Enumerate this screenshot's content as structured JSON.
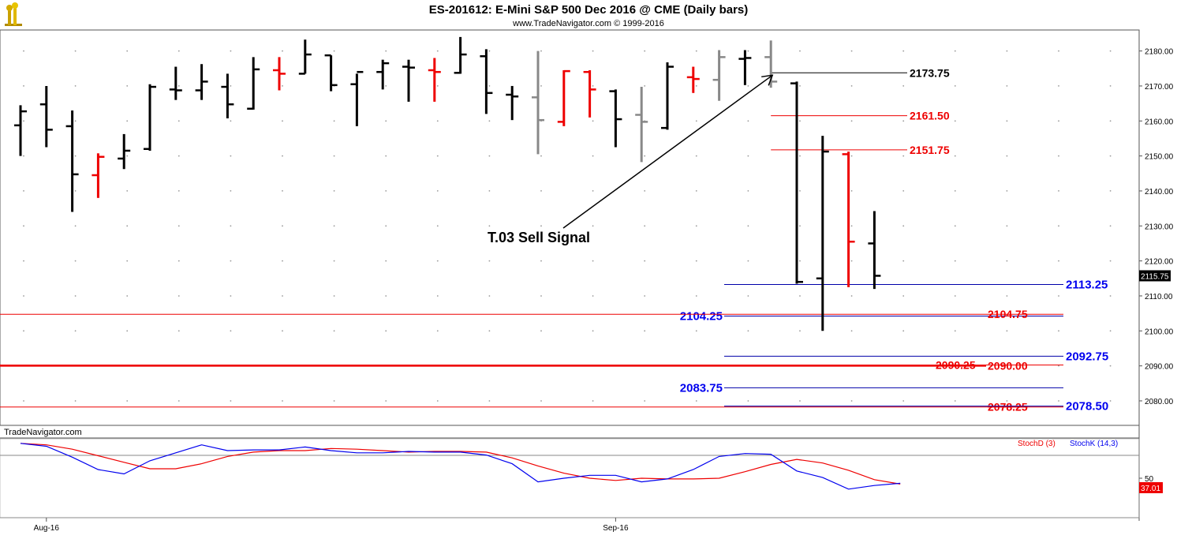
{
  "header": {
    "title": "ES-201612:  E-Mini S&P 500 Dec 2016 @ CME  (Daily bars)",
    "subtitle": "www.TradeNavigator.com © 1999-2016"
  },
  "colors": {
    "up_bar": "#000000",
    "down_bar": "#ee0000",
    "neutral_bar": "#888888",
    "red_line": "#ee0000",
    "blue_line": "#0000aa",
    "blue_text": "#0000ee",
    "red_text": "#ee0000",
    "stoch_d": "#ee0000",
    "stoch_k": "#0000ee",
    "dot": "#999999"
  },
  "chart_data": [
    {
      "type": "ohlc",
      "ylim": [
        2073,
        2186
      ],
      "y_ticks": [
        "2180.00",
        "2170.00",
        "2160.00",
        "2150.00",
        "2140.00",
        "2130.00",
        "2120.00",
        "2110.00",
        "2100.00",
        "2090.00",
        "2080.00"
      ],
      "y_tick_values": [
        2180,
        2170,
        2160,
        2150,
        2140,
        2130,
        2120,
        2110,
        2100,
        2090,
        2080
      ],
      "last_price": "2115.75",
      "x_labels": [
        "Aug-16",
        "Sep-16"
      ],
      "x_label_bars": [
        1,
        23
      ],
      "bars": [
        {
          "o": 2158.75,
          "h": 2164.5,
          "l": 2150.0,
          "c": 2162.75,
          "color": "up"
        },
        {
          "o": 2164.75,
          "h": 2170.0,
          "l": 2152.5,
          "c": 2157.5,
          "color": "up"
        },
        {
          "o": 2158.5,
          "h": 2163.0,
          "l": 2134.0,
          "c": 2144.75,
          "color": "up"
        },
        {
          "o": 2144.5,
          "h": 2150.75,
          "l": 2138.0,
          "c": 2149.75,
          "color": "down"
        },
        {
          "o": 2149.25,
          "h": 2156.25,
          "l": 2146.25,
          "c": 2151.5,
          "color": "up"
        },
        {
          "o": 2152.0,
          "h": 2170.5,
          "l": 2151.5,
          "c": 2169.75,
          "color": "up"
        },
        {
          "o": 2169.0,
          "h": 2175.5,
          "l": 2166.0,
          "c": 2168.75,
          "color": "up"
        },
        {
          "o": 2168.75,
          "h": 2176.25,
          "l": 2166.0,
          "c": 2171.25,
          "color": "up"
        },
        {
          "o": 2169.75,
          "h": 2173.5,
          "l": 2160.75,
          "c": 2164.75,
          "color": "up"
        },
        {
          "o": 2163.5,
          "h": 2178.25,
          "l": 2163.25,
          "c": 2174.75,
          "color": "up"
        },
        {
          "o": 2174.5,
          "h": 2178.25,
          "l": 2168.75,
          "c": 2173.5,
          "color": "down"
        },
        {
          "o": 2173.5,
          "h": 2183.25,
          "l": 2173.5,
          "c": 2179.0,
          "color": "up"
        },
        {
          "o": 2178.75,
          "h": 2178.75,
          "l": 2168.5,
          "c": 2170.25,
          "color": "up"
        },
        {
          "o": 2170.5,
          "h": 2173.5,
          "l": 2158.5,
          "c": 2174.0,
          "color": "up"
        },
        {
          "o": 2174.0,
          "h": 2177.5,
          "l": 2169.0,
          "c": 2176.5,
          "color": "up"
        },
        {
          "o": 2175.5,
          "h": 2177.5,
          "l": 2165.5,
          "c": 2175.25,
          "color": "up"
        },
        {
          "o": 2174.5,
          "h": 2178.0,
          "l": 2165.5,
          "c": 2174.0,
          "color": "down"
        },
        {
          "o": 2173.75,
          "h": 2184.0,
          "l": 2173.5,
          "c": 2179.0,
          "color": "up"
        },
        {
          "o": 2178.5,
          "h": 2180.5,
          "l": 2162.0,
          "c": 2168.0,
          "color": "up"
        },
        {
          "o": 2167.5,
          "h": 2170.0,
          "l": 2160.25,
          "c": 2167.0,
          "color": "up"
        },
        {
          "o": 2166.75,
          "h": 2180.0,
          "l": 2150.5,
          "c": 2160.25,
          "color": "neutral"
        },
        {
          "o": 2159.75,
          "h": 2174.5,
          "l": 2158.5,
          "c": 2174.25,
          "color": "down"
        },
        {
          "o": 2174.0,
          "h": 2174.5,
          "l": 2161.0,
          "c": 2169.0,
          "color": "down"
        },
        {
          "o": 2168.5,
          "h": 2169.0,
          "l": 2152.5,
          "c": 2160.5,
          "color": "up"
        },
        {
          "o": 2161.75,
          "h": 2169.75,
          "l": 2148.25,
          "c": 2159.75,
          "color": "neutral"
        },
        {
          "o": 2158.0,
          "h": 2176.75,
          "l": 2157.5,
          "c": 2175.5,
          "color": "up"
        },
        {
          "o": 2172.5,
          "h": 2175.5,
          "l": 2168.0,
          "c": 2172.0,
          "color": "down"
        },
        {
          "o": 2171.75,
          "h": 2180.25,
          "l": 2165.75,
          "c": 2178.25,
          "color": "neutral"
        },
        {
          "o": 2177.75,
          "h": 2180.25,
          "l": 2170.25,
          "c": 2178.0,
          "color": "up"
        },
        {
          "o": 2178.25,
          "h": 2183.0,
          "l": 2169.5,
          "c": 2171.25,
          "color": "neutral"
        },
        {
          "o": 2170.75,
          "h": 2171.25,
          "l": 2113.5,
          "c": 2114.0,
          "color": "up"
        },
        {
          "o": 2115.0,
          "h": 2155.75,
          "l": 2100.0,
          "c": 2151.25,
          "color": "up"
        },
        {
          "o": 2150.5,
          "h": 2151.25,
          "l": 2112.5,
          "c": 2125.5,
          "color": "down"
        },
        {
          "o": 2125.0,
          "h": 2134.25,
          "l": 2112.0,
          "c": 2115.75,
          "color": "up"
        }
      ]
    },
    {
      "type": "line",
      "series": [
        {
          "name": "StochD (3)",
          "values": [
            98,
            96,
            90,
            81,
            72,
            63,
            63,
            70,
            80,
            86,
            88,
            88,
            91,
            90,
            88,
            86,
            87,
            87,
            86,
            78,
            67,
            57,
            50,
            47,
            50,
            49,
            49,
            50,
            59,
            69,
            76,
            71,
            61,
            48,
            42
          ]
        },
        {
          "name": "StochK (14,3)",
          "values": [
            98,
            94,
            79,
            62,
            56,
            74,
            85,
            96,
            88,
            89,
            89,
            93,
            88,
            85,
            85,
            87,
            86,
            86,
            82,
            70,
            45,
            50,
            54,
            54,
            45,
            49,
            62,
            80,
            84,
            83,
            60,
            51,
            35,
            40,
            43
          ]
        }
      ],
      "y_tick": "50",
      "y_tick_value": 50,
      "last_value": "37.01"
    }
  ],
  "levels": [
    {
      "value": 2173.75,
      "label": "2173.75",
      "color": "black",
      "from_bar": 29,
      "label_side": "right"
    },
    {
      "value": 2161.5,
      "label": "2161.50",
      "color": "red",
      "from_bar": 29,
      "label_side": "right"
    },
    {
      "value": 2151.75,
      "label": "2151.75",
      "color": "red",
      "from_bar": 29,
      "label_side": "right"
    },
    {
      "value": 2113.25,
      "label": "2113.25",
      "color": "blue",
      "from_bar": 27,
      "label_side": "far"
    },
    {
      "value": 2104.25,
      "label": "2104.25",
      "color": "blue",
      "from_bar": 27,
      "label_side": "left"
    },
    {
      "value": 2104.75,
      "label": "2104.75",
      "color": "red",
      "from_bar": -1,
      "label_side": "mid"
    },
    {
      "value": 2092.75,
      "label": "2092.75",
      "color": "blue",
      "from_bar": 27,
      "label_side": "far"
    },
    {
      "value": 2090.25,
      "label": "2090.25",
      "color": "red",
      "from_bar": -1,
      "label_side": "mid2",
      "strike": true
    },
    {
      "value": 2090.0,
      "label": "2090.00",
      "color": "red",
      "from_bar": -1,
      "label_side": "mid"
    },
    {
      "value": 2083.75,
      "label": "2083.75",
      "color": "blue",
      "from_bar": 27,
      "label_side": "left"
    },
    {
      "value": 2078.25,
      "label": "2078.25",
      "color": "red",
      "from_bar": -1,
      "label_side": "mid",
      "strike": true
    },
    {
      "value": 2078.5,
      "label": "2078.50",
      "color": "blue",
      "from_bar": 27,
      "label_side": "far"
    }
  ],
  "annotation": {
    "text": "T.03 Sell Signal",
    "target_bar": 29,
    "target_value": 2173.75
  },
  "watermark": "TradeNavigator.com"
}
